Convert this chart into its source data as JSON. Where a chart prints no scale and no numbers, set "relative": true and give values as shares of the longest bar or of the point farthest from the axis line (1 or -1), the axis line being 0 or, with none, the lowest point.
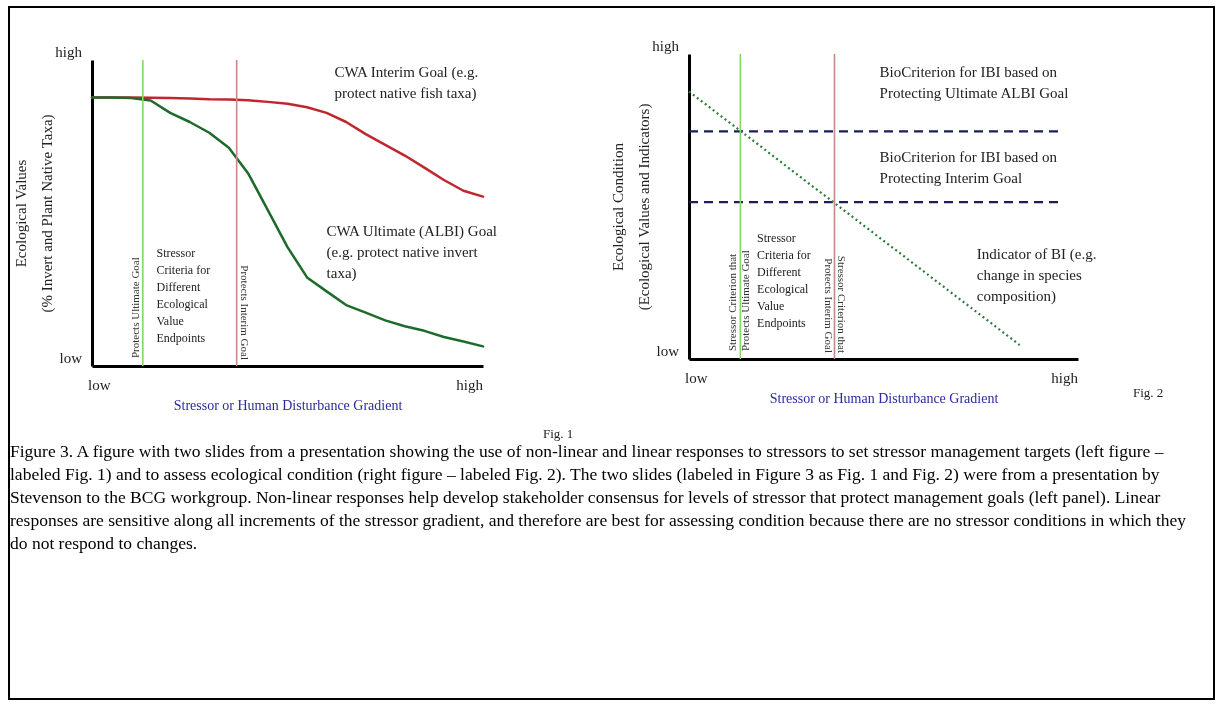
{
  "chart_data": [
    {
      "type": "line",
      "relative": true,
      "xlabel": "Stressor or Human Disturbance Gradient",
      "ylabel": "Ecological Values (% Invert and Plant Native Taxa)",
      "categories": [
        null,
        null,
        null,
        null,
        null,
        null,
        null,
        null,
        null,
        null,
        null,
        null,
        null,
        null,
        null,
        null,
        null,
        null,
        null,
        null,
        null
      ],
      "series": [
        {
          "name": "CWA Interim Goal (e.g. protect native fish taxa)",
          "color": "#c0262d",
          "values": [
            1,
            1,
            1,
            0.999,
            0.998,
            0.997,
            0.994,
            0.993,
            0.99,
            0.984,
            0.977,
            0.964,
            0.943,
            0.909,
            0.864,
            0.824,
            0.784,
            0.739,
            0.693,
            0.653,
            0.631
          ]
        },
        {
          "name": "CWA Ultimate (ALBI) Goal (e.g. protect native invert taxa)",
          "color": "#1d6b2b",
          "values": [
            1,
            1,
            0.998,
            0.989,
            0.943,
            0.909,
            0.869,
            0.813,
            0.716,
            0.58,
            0.443,
            0.33,
            0.278,
            0.227,
            0.199,
            0.17,
            0.148,
            0.131,
            0.108,
            0.091,
            0.073
          ]
        }
      ],
      "annotations": [
        "low",
        "high",
        "low",
        "high",
        "Stressor Criteria for Different Ecological Value Endpoints",
        "Fig. 1",
        "Protects Ultimate Goal",
        "Protects Interim Goal"
      ]
    },
    {
      "type": "line",
      "relative": true,
      "xlabel": "Stressor or Human Disturbance Gradient",
      "ylabel": "Ecological Condition (Ecological Values and Indicators)",
      "categories": [
        null,
        null,
        null,
        null,
        null,
        null,
        null,
        null,
        null,
        null,
        null,
        null,
        null,
        null,
        null,
        null,
        null,
        null,
        null,
        null,
        null
      ],
      "series": [
        {
          "name": "BioCriterion for IBI based on Protecting Ultimate ALBI Goal",
          "color": "#1c1c5e",
          "line_style": "dashed",
          "values": [
            0.851,
            0.851,
            0.851,
            0.851,
            0.851,
            0.851,
            0.851,
            0.851,
            0.851,
            0.851,
            0.851,
            0.851,
            0.851,
            0.851,
            0.851,
            0.851,
            0.851,
            0.851,
            0.851,
            0.851,
            null
          ]
        },
        {
          "name": "BioCriterion for IBI based on Protecting Interim Goal",
          "color": "#1c1c5e",
          "line_style": "dashed",
          "values": [
            0.586,
            0.586,
            0.586,
            0.586,
            0.586,
            0.586,
            0.586,
            0.586,
            0.586,
            0.586,
            0.586,
            0.586,
            0.586,
            0.586,
            0.586,
            0.586,
            0.586,
            0.586,
            0.586,
            0.586,
            null
          ]
        },
        {
          "name": "Indicator of BI (e.g. change in species composition)",
          "color": "#2f7a3a",
          "line_style": "dotted",
          "values": [
            1,
            0.944,
            0.888,
            0.833,
            0.777,
            0.721,
            0.665,
            0.61,
            0.554,
            0.498,
            0.442,
            0.387,
            0.331,
            0.275,
            0.219,
            0.164,
            0.108,
            0.052,
            null,
            null,
            null
          ]
        }
      ],
      "annotations": [
        "low",
        "high",
        "low",
        "high",
        "Stressor Criteria for Different Ecological Value Endpoints",
        "Fig. 2",
        "Stressor Criterion that Protects Ultimate Goal",
        "Stressor Criterion that Protects Interim Goal"
      ]
    },
    {
      "type": "other",
      "annotations": [
        "Figure 3. A figure with two slides from a presentation showing the use of non-linear and linear responses to stressors to set stressor management targets (left figure – labeled Fig. 1) and to assess ecological condition (right figure – labeled Fig. 2).  The two slides (labeled in Figure 3 as Fig. 1 and Fig. 2) were from a presentation by Stevenson to the BCG workgroup.  Non-linear responses help develop stakeholder consensus for levels of stressor that protect management goals (left panel). Linear responses are sensitive along all increments of the stressor gradient, and therefore are best for assessing condition because there are no stressor conditions in which they do not respond to changes."
      ]
    }
  ]
}
